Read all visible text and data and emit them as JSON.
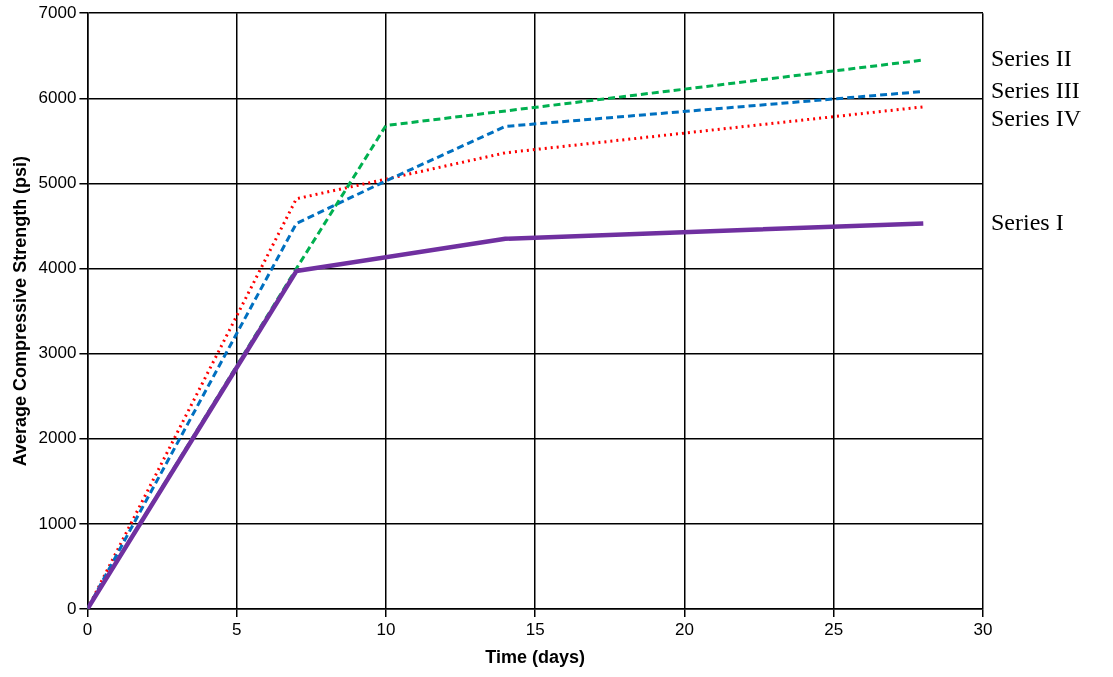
{
  "chart_data": {
    "type": "line",
    "xlabel": "Time (days)",
    "ylabel": "Average Compressive Strength (psi)",
    "xlim": [
      0,
      30
    ],
    "xticks": [
      0,
      5,
      10,
      15,
      20,
      25,
      30
    ],
    "ylim": [
      0,
      7000
    ],
    "yticks": [
      0,
      1000,
      2000,
      3000,
      4000,
      5000,
      6000,
      7000
    ],
    "grid": true,
    "legend": false,
    "marker": "none",
    "series": [
      {
        "name": "Series I",
        "color": "#7030a0",
        "line_style": "solid",
        "x": [
          0,
          7,
          14,
          28
        ],
        "values": [
          0,
          3970,
          4350,
          4530
        ]
      },
      {
        "name": "Series II",
        "color": "#00b050",
        "line_style": "dashed",
        "x": [
          0,
          7,
          10,
          28
        ],
        "values": [
          0,
          4000,
          5680,
          6450
        ]
      },
      {
        "name": "Series III",
        "color": "#0070c0",
        "line_style": "dashed",
        "x": [
          0,
          7,
          10,
          14,
          28
        ],
        "values": [
          0,
          4530,
          5030,
          5670,
          6080
        ]
      },
      {
        "name": "Series IV",
        "color": "#ff0000",
        "line_style": "dotted",
        "x": [
          0,
          7,
          10,
          14,
          28
        ],
        "values": [
          0,
          4820,
          5050,
          5360,
          5900
        ]
      }
    ]
  }
}
